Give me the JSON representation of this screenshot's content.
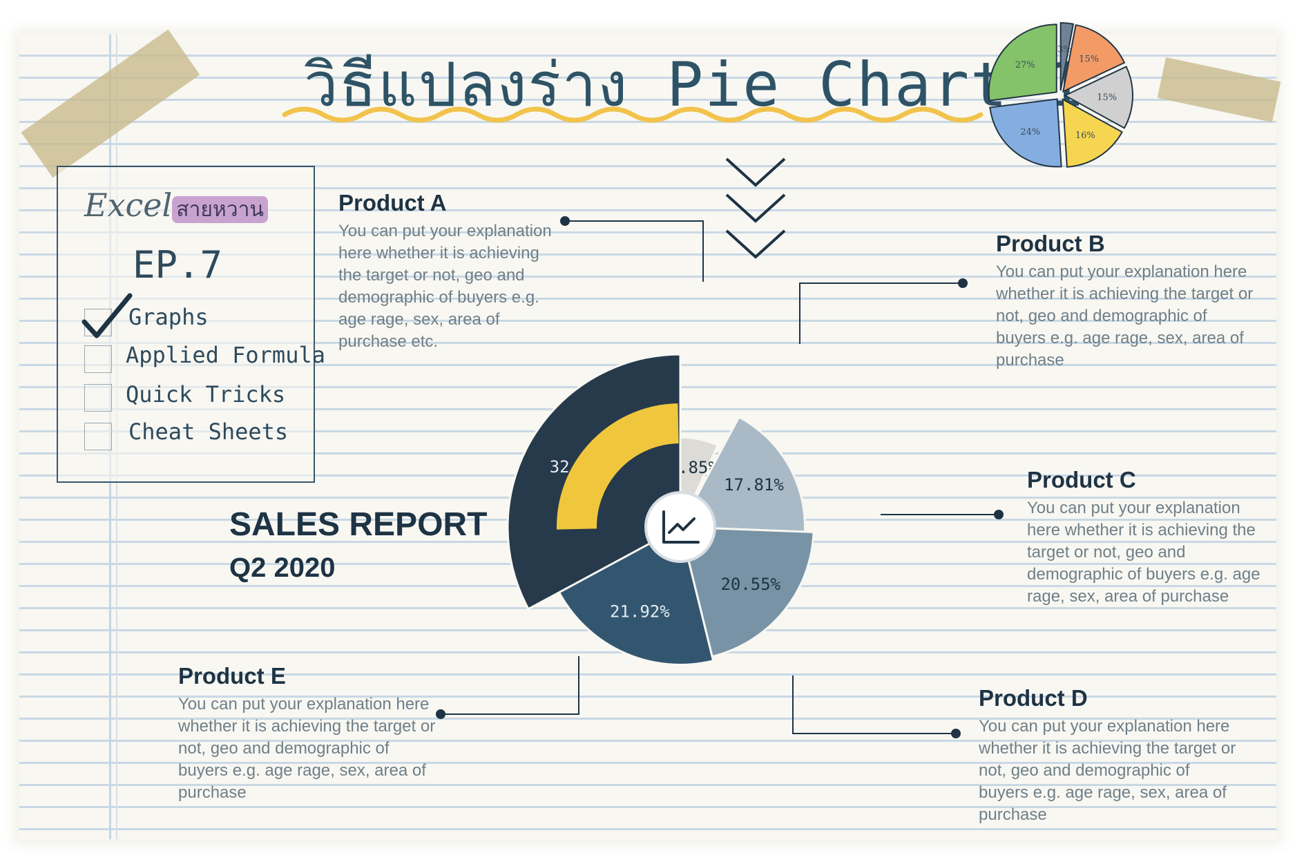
{
  "title": "วิธีแปลงร่าง Pie Chart 1",
  "brand": {
    "name": "Excel",
    "thai": "สายหวาน"
  },
  "episode": "EP.7",
  "checklist": [
    {
      "label": "Graphs",
      "checked": true
    },
    {
      "label": "Applied Formula",
      "checked": false
    },
    {
      "label": "Quick Tricks",
      "checked": false
    },
    {
      "label": "Cheat Sheets",
      "checked": false
    }
  ],
  "report": {
    "title": "SALES REPORT",
    "period": "Q2 2020"
  },
  "products": [
    {
      "name": "Product A",
      "desc": "You can put your explanation here whether it is achieving the target or not, geo and demographic of buyers e.g. age rage, sex, area of purchase etc."
    },
    {
      "name": "Product B",
      "desc": "You can put your explanation here whether it is achieving the target or not, geo and demographic of buyers e.g. age rage, sex, area of purchase"
    },
    {
      "name": "Product C",
      "desc": "You can put your explanation here whether it is achieving the target or not, geo and demographic of buyers e.g. age rage, sex, area of purchase"
    },
    {
      "name": "Product D",
      "desc": "You can put your explanation here whether it is achieving the target or not, geo and demographic of buyers e.g. age rage, sex, area of purchase"
    },
    {
      "name": "Product E",
      "desc": "You can put your explanation here whether it is achieving the target or not, geo and demographic of buyers e.g. age rage, sex, area of purchase"
    }
  ],
  "colors": {
    "ink": "#1e3344",
    "accent_yellow": "#f0c63c",
    "wave": "#f2c34c"
  },
  "chart_data": [
    {
      "type": "pie",
      "variant": "variable-radius rose",
      "categories": [
        "Product A",
        "Product B",
        "Product C",
        "Product D",
        "Product E"
      ],
      "values": [
        6.85,
        17.81,
        20.55,
        21.92,
        32.88
      ],
      "labels": [
        "6.85%",
        "17.81%",
        "20.55%",
        "21.92%",
        "32.88%"
      ],
      "colors": [
        "#dddbd5",
        "#a9bac6",
        "#7893a5",
        "#335670",
        "#263a4b"
      ],
      "center_icon": "trend-chart-icon"
    },
    {
      "type": "pie",
      "variant": "thumbnail exploded pie",
      "values": [
        3,
        15,
        15,
        16,
        24,
        27
      ],
      "labels": [
        "3%",
        "15%",
        "15%",
        "16%",
        "24%",
        "27%"
      ],
      "colors": [
        "#6f8296",
        "#f39b66",
        "#cfd0cf",
        "#f6d550",
        "#85aee0",
        "#84c36a"
      ]
    }
  ]
}
